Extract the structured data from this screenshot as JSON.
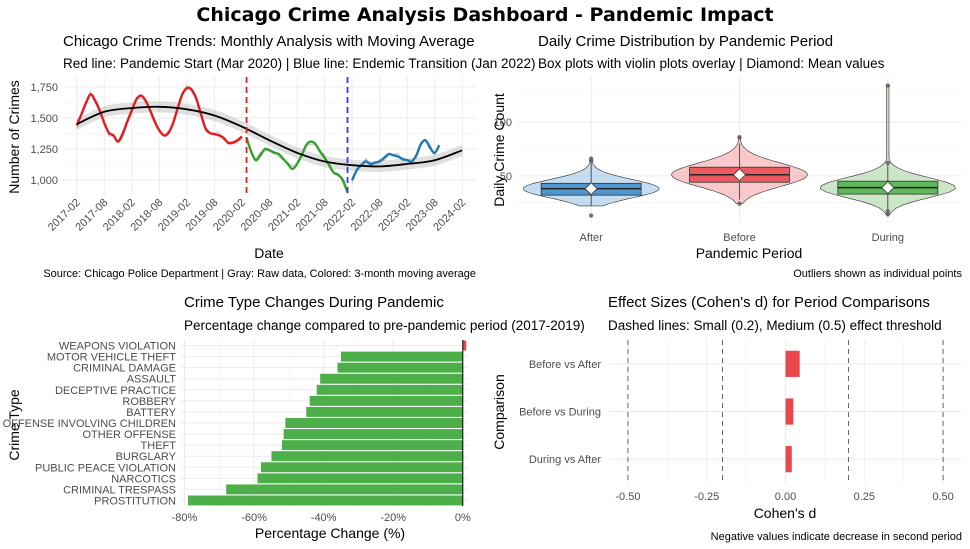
{
  "title": "Chicago Crime Analysis Dashboard - Pandemic Impact",
  "chart_data": [
    {
      "type": "line",
      "title": "Chicago Crime Trends: Monthly Analysis with Moving Average",
      "subtitle": "Red line: Pandemic Start (Mar 2020) | Blue line: Endemic Transition (Jan 2022)",
      "caption": "Source: Chicago Police Department | Gray: Raw data, Colored: 3-month moving average",
      "xlabel": "Date",
      "ylabel": "Number of Crimes",
      "x_ticks": [
        "2017-02",
        "2017-08",
        "2018-02",
        "2018-08",
        "2019-02",
        "2019-08",
        "2020-02",
        "2020-08",
        "2021-02",
        "2021-08",
        "2022-02",
        "2022-08",
        "2023-02",
        "2023-08",
        "2024-02"
      ],
      "y_ticks": [
        "1,000",
        "1,250",
        "1,500",
        "1,750"
      ],
      "ylim": [
        880,
        1830
      ],
      "vlines": [
        {
          "date": "2020-03",
          "color": "#e41a1c"
        },
        {
          "date": "2022-01",
          "color": "#3b3bd6"
        }
      ],
      "series": [
        {
          "segment": "pre-pandemic",
          "color": "#e41a1c",
          "start": "2017-02",
          "values": [
            1440,
            1530,
            1620,
            1690,
            1640,
            1560,
            1460,
            1380,
            1360,
            1310,
            1370,
            1470,
            1560,
            1650,
            1680,
            1640,
            1560,
            1470,
            1400,
            1360,
            1380,
            1460,
            1580,
            1690,
            1740,
            1730,
            1660,
            1540,
            1420,
            1380,
            1370,
            1360,
            1340,
            1300,
            1300,
            1320,
            1350
          ]
        },
        {
          "segment": "pandemic",
          "color": "#33a02c",
          "start": "2020-03",
          "values": [
            1340,
            1230,
            1160,
            1200,
            1250,
            1240,
            1220,
            1210,
            1170,
            1130,
            1090,
            1130,
            1200,
            1280,
            1310,
            1290,
            1230,
            1180,
            1120,
            1060,
            1040,
            1000,
            900
          ]
        },
        {
          "segment": "endemic",
          "color": "#1f78b4",
          "start": "2022-02",
          "values": [
            1000,
            1080,
            1120,
            1150,
            1130,
            1140,
            1150,
            1180,
            1210,
            1200,
            1190,
            1170,
            1160,
            1150,
            1200,
            1290,
            1320,
            1260,
            1220,
            1280
          ]
        }
      ],
      "trend": {
        "color": "#000000",
        "start": "2017-02",
        "values": [
          1450,
          1550,
          1580,
          1590,
          1570,
          1520,
          1430,
          1320,
          1220,
          1150,
          1120,
          1110,
          1130,
          1160,
          1240
        ]
      }
    },
    {
      "type": "box",
      "title": "Daily Crime Distribution by Pandemic Period",
      "subtitle": "Box plots with violin plots overlay | Diamond: Mean values",
      "caption": "Outliers shown as individual points",
      "xlabel": "Pandemic Period",
      "ylabel": "Daily Crime Count",
      "y_ticks": [
        50,
        100
      ],
      "ylim": [
        7,
        142
      ],
      "categories": [
        "After",
        "Before",
        "During"
      ],
      "colors": [
        "#3a87c7",
        "#e8474c",
        "#4daf4a"
      ],
      "fills": [
        "#9ec6e6",
        "#f3a3a6",
        "#a8d7a4"
      ],
      "boxes": [
        {
          "min": 22,
          "q1": 32,
          "median": 38,
          "q3": 43,
          "max": 62,
          "mean": 38,
          "outliers": [
            13,
            64,
            66
          ],
          "violin_extent": [
            22,
            64
          ]
        },
        {
          "min": 28,
          "q1": 44,
          "median": 51,
          "q3": 58,
          "max": 80,
          "mean": 51,
          "outliers": [
            24,
            86
          ],
          "violin_extent": [
            24,
            86
          ]
        },
        {
          "min": 18,
          "q1": 33,
          "median": 39,
          "q3": 45,
          "max": 60,
          "mean": 39,
          "outliers": [
            14,
            17,
            62,
            134
          ],
          "violin_extent": [
            14,
            134
          ]
        }
      ]
    },
    {
      "type": "bar",
      "orientation": "horizontal",
      "title": "Crime Type Changes During Pandemic",
      "subtitle": "Percentage change compared to pre-pandemic period (2017-2019)",
      "xlabel": "Percentage Change (%)",
      "ylabel": "Crime Type",
      "x_ticks": [
        "-80%",
        "-60%",
        "-40%",
        "-20%",
        "0%"
      ],
      "xlim": [
        -81,
        1.5
      ],
      "categories": [
        "WEAPONS VIOLATION",
        "MOTOR VEHICLE THEFT",
        "CRIMINAL DAMAGE",
        "ASSAULT",
        "DECEPTIVE PRACTICE",
        "ROBBERY",
        "BATTERY",
        "OFFENSE INVOLVING CHILDREN",
        "OTHER OFFENSE",
        "THEFT",
        "BURGLARY",
        "PUBLIC PEACE VIOLATION",
        "NARCOTICS",
        "CRIMINAL TRESPASS",
        "PROSTITUTION"
      ],
      "values": [
        1,
        -35,
        -36,
        -41,
        -42,
        -44,
        -45,
        -51,
        -51.5,
        -52,
        -55,
        -58,
        -59,
        -68,
        -79
      ],
      "positive_color": "#e8474c",
      "negative_color": "#4daf4a"
    },
    {
      "type": "bar",
      "orientation": "horizontal",
      "title": "Effect Sizes (Cohen's d) for Period Comparisons",
      "subtitle": "Dashed lines: Small (0.2), Medium (0.5) effect threshold",
      "caption": "Negative values indicate decrease in second period",
      "xlabel": "Cohen's d",
      "ylabel": "Comparison",
      "x_ticks": [
        "-0.50",
        "-0.25",
        "0.00",
        "0.25",
        "0.50"
      ],
      "xlim": [
        -0.56,
        0.56
      ],
      "thresholds": [
        -0.5,
        -0.2,
        0.2,
        0.5
      ],
      "categories": [
        "Before vs After",
        "Before vs During",
        "During vs After"
      ],
      "values": [
        0.045,
        0.025,
        0.02
      ],
      "color": "#e8474c"
    }
  ]
}
